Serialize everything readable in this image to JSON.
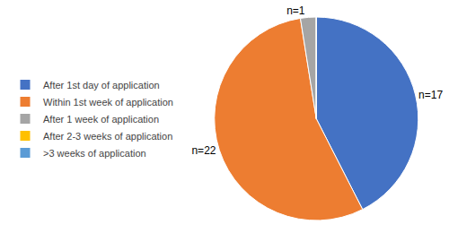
{
  "chart_data": {
    "type": "pie",
    "categories": [
      "After 1st day of application",
      "Within 1st week of application",
      "After 1 week of application",
      "After 2-3 weeks of application",
      ">3 weeks of application"
    ],
    "values": [
      17,
      22,
      1,
      0,
      0
    ],
    "value_labels": [
      "n=17",
      "n=22",
      "n=1",
      null,
      null
    ],
    "colors": [
      "#4472C4",
      "#ED7D31",
      "#A5A5A5",
      "#FFC000",
      "#5B9BD5"
    ],
    "data_labels": true,
    "legend": "left"
  }
}
